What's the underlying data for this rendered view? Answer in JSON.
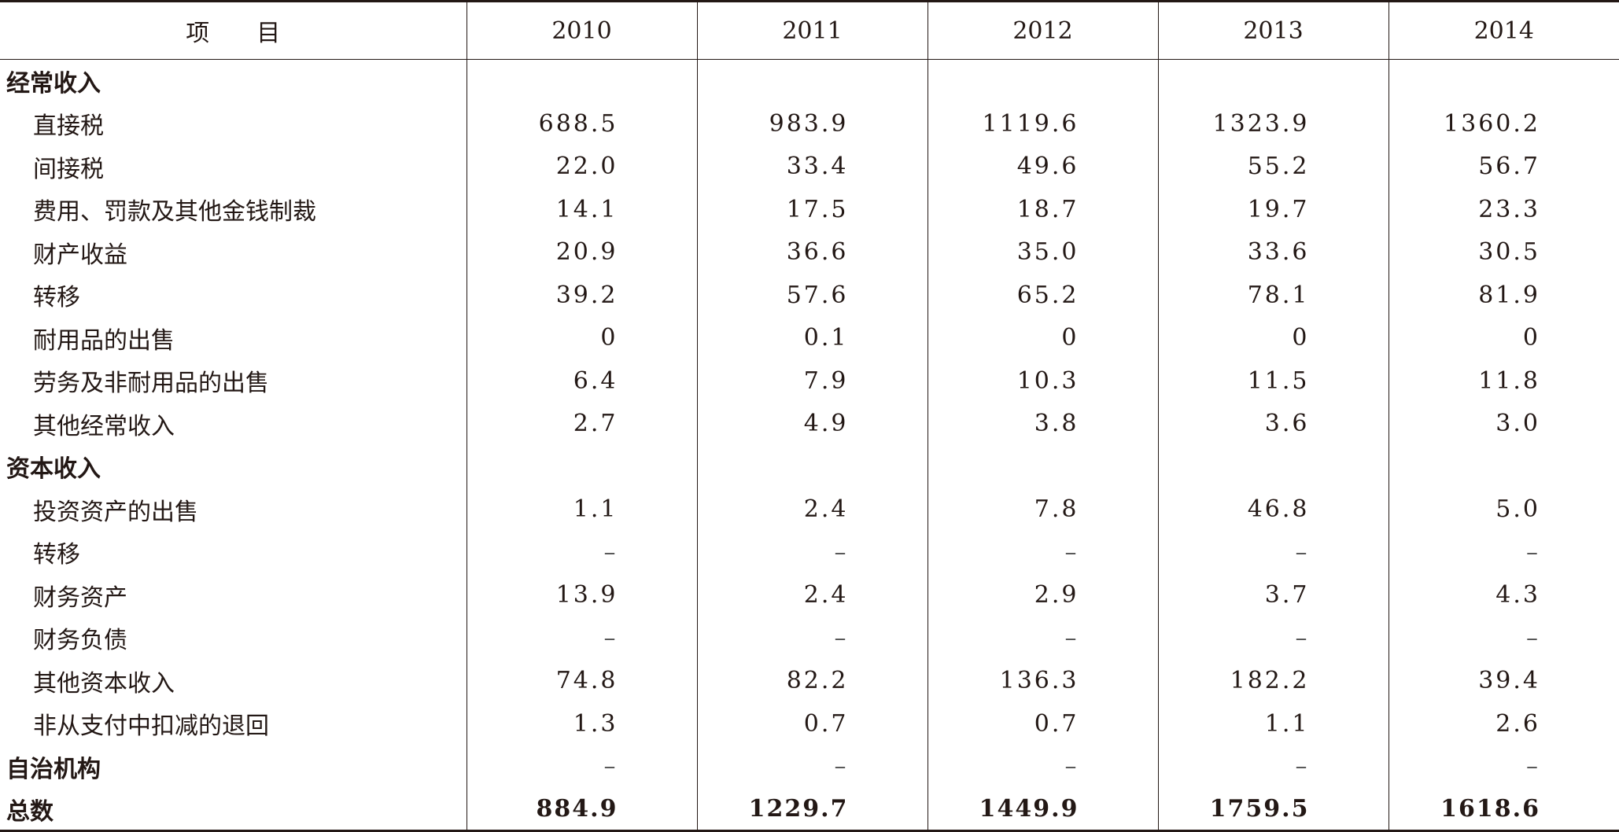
{
  "table": {
    "header": {
      "item": "项　　目",
      "years": [
        "2010",
        "2011",
        "2012",
        "2013",
        "2014"
      ]
    },
    "rows": [
      {
        "label": "经常收入",
        "type": "section",
        "values": [
          "",
          "",
          "",
          "",
          ""
        ]
      },
      {
        "label": "直接税",
        "type": "sub",
        "values": [
          "688.5",
          "983.9",
          "1119.6",
          "1323.9",
          "1360.2"
        ]
      },
      {
        "label": "间接税",
        "type": "sub",
        "values": [
          "22.0",
          "33.4",
          "49.6",
          "55.2",
          "56.7"
        ]
      },
      {
        "label": "费用、罚款及其他金钱制裁",
        "type": "sub",
        "values": [
          "14.1",
          "17.5",
          "18.7",
          "19.7",
          "23.3"
        ]
      },
      {
        "label": "财产收益",
        "type": "sub",
        "values": [
          "20.9",
          "36.6",
          "35.0",
          "33.6",
          "30.5"
        ]
      },
      {
        "label": "转移",
        "type": "sub",
        "values": [
          "39.2",
          "57.6",
          "65.2",
          "78.1",
          "81.9"
        ]
      },
      {
        "label": "耐用品的出售",
        "type": "sub",
        "values": [
          "0",
          "0.1",
          "0",
          "0",
          "0"
        ]
      },
      {
        "label": "劳务及非耐用品的出售",
        "type": "sub",
        "values": [
          "6.4",
          "7.9",
          "10.3",
          "11.5",
          "11.8"
        ]
      },
      {
        "label": "其他经常收入",
        "type": "sub",
        "values": [
          "2.7",
          "4.9",
          "3.8",
          "3.6",
          "3.0"
        ]
      },
      {
        "label": "资本收入",
        "type": "section",
        "values": [
          "",
          "",
          "",
          "",
          ""
        ]
      },
      {
        "label": "投资资产的出售",
        "type": "sub",
        "values": [
          "1.1",
          "2.4",
          "7.8",
          "46.8",
          "5.0"
        ]
      },
      {
        "label": "转移",
        "type": "sub",
        "values": [
          "–",
          "–",
          "–",
          "–",
          "–"
        ]
      },
      {
        "label": "财务资产",
        "type": "sub",
        "values": [
          "13.9",
          "2.4",
          "2.9",
          "3.7",
          "4.3"
        ]
      },
      {
        "label": "财务负债",
        "type": "sub",
        "values": [
          "–",
          "–",
          "–",
          "–",
          "–"
        ]
      },
      {
        "label": "其他资本收入",
        "type": "sub",
        "values": [
          "74.8",
          "82.2",
          "136.3",
          "182.2",
          "39.4"
        ]
      },
      {
        "label": "非从支付中扣减的退回",
        "type": "sub",
        "values": [
          "1.3",
          "0.7",
          "0.7",
          "1.1",
          "2.6"
        ]
      },
      {
        "label": "自治机构",
        "type": "section",
        "values": [
          "–",
          "–",
          "–",
          "–",
          "–"
        ]
      },
      {
        "label": "总数",
        "type": "total",
        "values": [
          "884.9",
          "1229.7",
          "1449.9",
          "1759.5",
          "1618.6"
        ]
      }
    ]
  }
}
